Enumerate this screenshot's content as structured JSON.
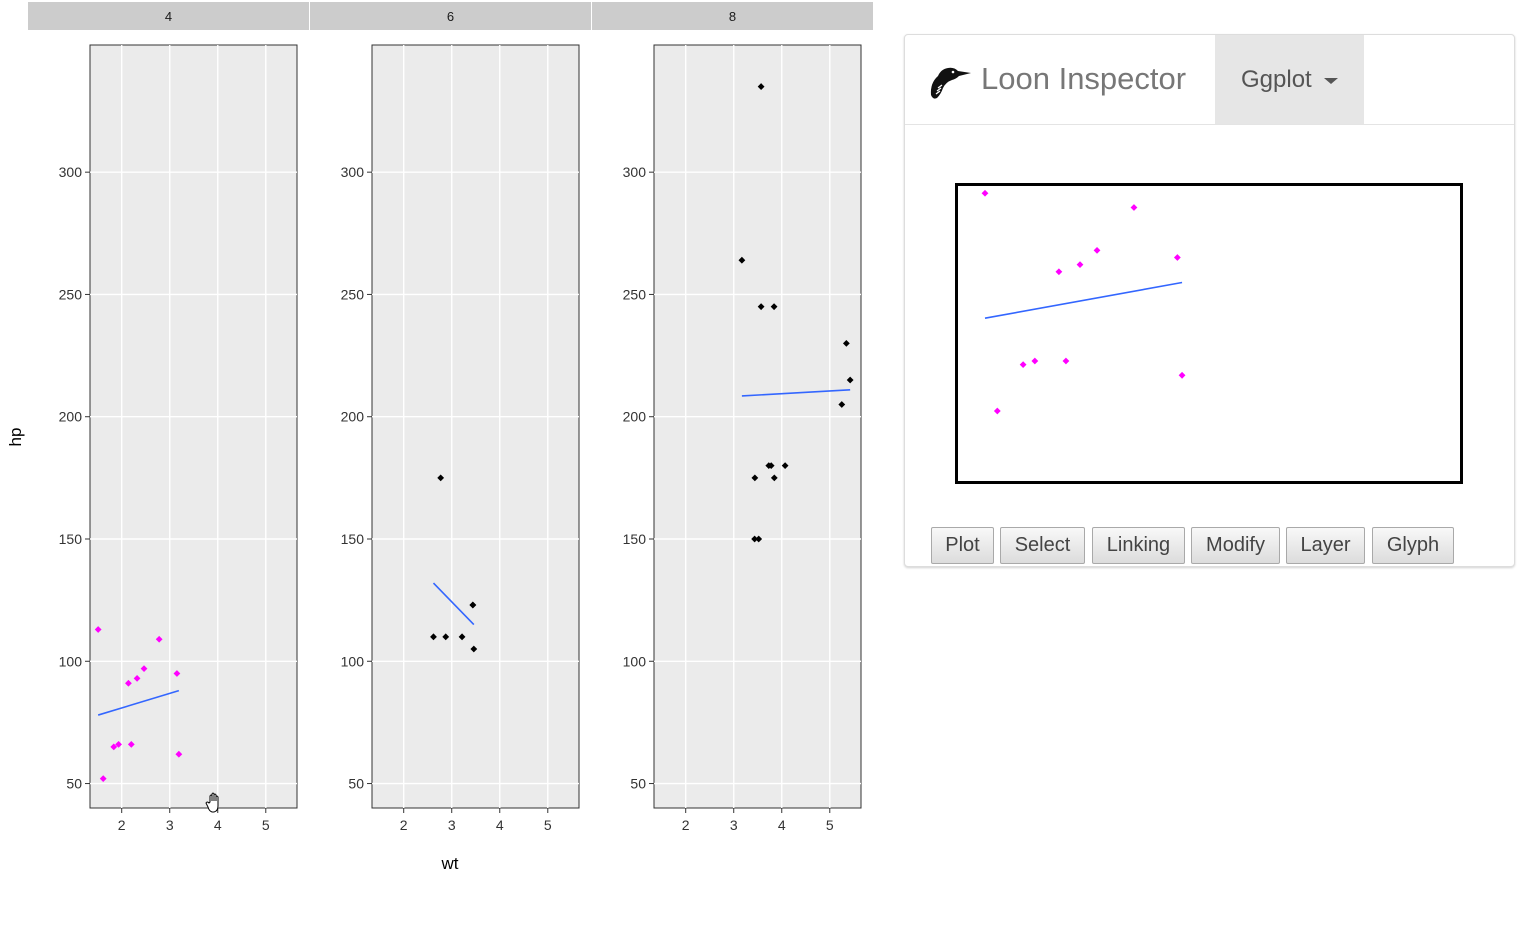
{
  "chart_data": {
    "type": "scatter",
    "facet_variable_levels": [
      "4",
      "6",
      "8"
    ],
    "xlabel": "wt",
    "ylabel": "hp",
    "x_ticks": [
      2,
      3,
      4,
      5
    ],
    "y_ticks": [
      50,
      100,
      150,
      200,
      250,
      300
    ],
    "xlim": [
      1.34,
      5.65
    ],
    "ylim": [
      40,
      352
    ],
    "facets": [
      {
        "label": "4",
        "point_color": "#ff00ff",
        "points": [
          [
            1.51,
            113
          ],
          [
            1.615,
            52
          ],
          [
            1.835,
            65
          ],
          [
            1.935,
            66
          ],
          [
            2.14,
            91
          ],
          [
            2.2,
            66
          ],
          [
            2.32,
            93
          ],
          [
            2.465,
            97
          ],
          [
            2.78,
            109
          ],
          [
            3.15,
            95
          ],
          [
            3.19,
            62
          ]
        ],
        "fit_line": [
          [
            1.51,
            78
          ],
          [
            3.19,
            88
          ]
        ]
      },
      {
        "label": "6",
        "point_color": "#000000",
        "points": [
          [
            2.62,
            110
          ],
          [
            2.77,
            175
          ],
          [
            2.875,
            110
          ],
          [
            3.215,
            110
          ],
          [
            3.44,
            123
          ],
          [
            3.44,
            123
          ],
          [
            3.46,
            105
          ]
        ],
        "fit_line": [
          [
            2.62,
            132
          ],
          [
            3.46,
            115
          ]
        ]
      },
      {
        "label": "8",
        "point_color": "#000000",
        "points": [
          [
            3.17,
            264
          ],
          [
            3.44,
            175
          ],
          [
            3.52,
            150
          ],
          [
            3.435,
            150
          ],
          [
            3.57,
            245
          ],
          [
            3.57,
            335
          ],
          [
            3.73,
            180
          ],
          [
            3.78,
            180
          ],
          [
            3.84,
            245
          ],
          [
            3.845,
            175
          ],
          [
            4.07,
            180
          ],
          [
            5.25,
            205
          ],
          [
            5.345,
            230
          ],
          [
            5.424,
            215
          ]
        ],
        "fit_line": [
          [
            3.17,
            208.5
          ],
          [
            5.424,
            211
          ]
        ]
      }
    ],
    "fit_line_color": "#3366ff"
  },
  "inspector": {
    "brand": "Loon Inspector",
    "logo_icon": "loon-bird-icon",
    "tab_label": "Ggplot",
    "world_view": {
      "points": [
        [
          1.51,
          113
        ],
        [
          1.615,
          52
        ],
        [
          1.835,
          65
        ],
        [
          1.935,
          66
        ],
        [
          2.14,
          91
        ],
        [
          2.2,
          66
        ],
        [
          2.32,
          93
        ],
        [
          2.465,
          97
        ],
        [
          2.78,
          109
        ],
        [
          3.15,
          95
        ],
        [
          3.19,
          62
        ]
      ],
      "fit_line": [
        [
          1.51,
          78
        ],
        [
          3.19,
          88
        ]
      ]
    },
    "buttons": [
      "Plot",
      "Select",
      "Linking",
      "Modify",
      "Layer",
      "Glyph"
    ]
  }
}
